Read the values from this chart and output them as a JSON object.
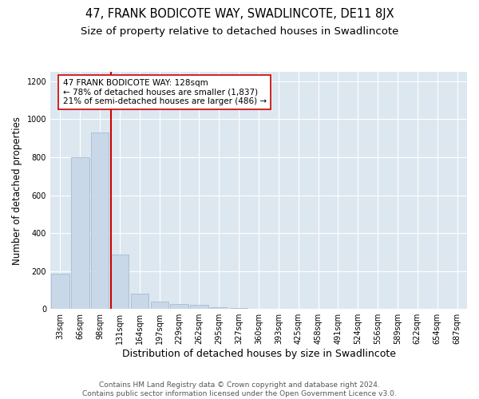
{
  "title": "47, FRANK BODICOTE WAY, SWADLINCOTE, DE11 8JX",
  "subtitle": "Size of property relative to detached houses in Swadlincote",
  "xlabel": "Distribution of detached houses by size in Swadlincote",
  "ylabel": "Number of detached properties",
  "bin_labels": [
    "33sqm",
    "66sqm",
    "98sqm",
    "131sqm",
    "164sqm",
    "197sqm",
    "229sqm",
    "262sqm",
    "295sqm",
    "327sqm",
    "360sqm",
    "393sqm",
    "425sqm",
    "458sqm",
    "491sqm",
    "524sqm",
    "556sqm",
    "589sqm",
    "622sqm",
    "654sqm",
    "687sqm"
  ],
  "bar_values": [
    185,
    800,
    930,
    285,
    80,
    40,
    25,
    20,
    8,
    5,
    0,
    0,
    0,
    0,
    0,
    0,
    0,
    0,
    0,
    0,
    0
  ],
  "bar_color": "#c8d8e8",
  "bar_edge_color": "#9ab5cc",
  "vline_color": "#cc0000",
  "vline_x": 2.57,
  "annotation_text": "47 FRANK BODICOTE WAY: 128sqm\n← 78% of detached houses are smaller (1,837)\n21% of semi-detached houses are larger (486) →",
  "annotation_box_color": "#ffffff",
  "annotation_box_edge": "#cc0000",
  "ylim": [
    0,
    1250
  ],
  "yticks": [
    0,
    200,
    400,
    600,
    800,
    1000,
    1200
  ],
  "grid_color": "#ffffff",
  "background_color": "#dde7f0",
  "footer_text": "Contains HM Land Registry data © Crown copyright and database right 2024.\nContains public sector information licensed under the Open Government Licence v3.0.",
  "title_fontsize": 10.5,
  "subtitle_fontsize": 9.5,
  "xlabel_fontsize": 9,
  "ylabel_fontsize": 8.5,
  "tick_fontsize": 7,
  "annotation_fontsize": 7.5,
  "footer_fontsize": 6.5
}
